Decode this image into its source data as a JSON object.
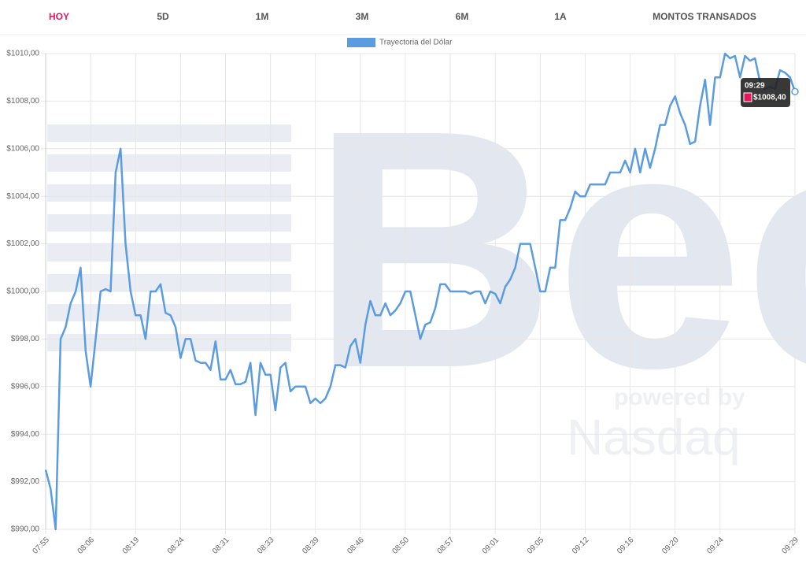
{
  "tabs": [
    "HOY",
    "5D",
    "1M",
    "3M",
    "6M",
    "1A",
    "MONTOS TRANSADOS"
  ],
  "active_tab": 0,
  "watermark": {
    "logo": "Bec",
    "tagline": "powered by",
    "brand": "Nasdaq"
  },
  "chart_data": {
    "type": "line",
    "categories": [
      "07:55",
      null,
      null,
      null,
      null,
      null,
      null,
      null,
      null,
      "08:06",
      null,
      null,
      null,
      null,
      null,
      null,
      null,
      null,
      "08:19",
      null,
      null,
      null,
      null,
      null,
      null,
      null,
      null,
      "08:24",
      null,
      null,
      null,
      null,
      null,
      null,
      null,
      null,
      "08:31",
      null,
      null,
      null,
      null,
      null,
      null,
      null,
      null,
      "08:33",
      null,
      null,
      null,
      null,
      null,
      null,
      null,
      null,
      "08:39",
      null,
      null,
      null,
      null,
      null,
      null,
      null,
      null,
      "08:46",
      null,
      null,
      null,
      null,
      null,
      null,
      null,
      null,
      "08:50",
      null,
      null,
      null,
      null,
      null,
      null,
      null,
      null,
      "08:57",
      null,
      null,
      null,
      null,
      null,
      null,
      null,
      null,
      "09:01",
      null,
      null,
      null,
      null,
      null,
      null,
      null,
      null,
      "09:05",
      null,
      null,
      null,
      null,
      null,
      null,
      null,
      null,
      "09:12",
      null,
      null,
      null,
      null,
      null,
      null,
      null,
      null,
      "09:16",
      null,
      null,
      null,
      null,
      null,
      null,
      null,
      null,
      "09:20",
      null,
      null,
      null,
      null,
      null,
      null,
      null,
      null,
      "09:24",
      null,
      null,
      null,
      null,
      null,
      null,
      null,
      null,
      null,
      null,
      null,
      null,
      null,
      null,
      "09:29"
    ],
    "series": [
      {
        "name": "Trayectoria del Dólar",
        "color": "#5b9be0",
        "values": [
          992.5,
          991.7,
          990,
          998,
          998.5,
          999.5,
          1000,
          1001,
          997.5,
          996,
          998,
          1000,
          1000.1,
          1000,
          1005,
          1006,
          1002,
          1000,
          999,
          999,
          998,
          1000,
          1000,
          1000.3,
          999.1,
          999,
          998.5,
          997.2,
          998,
          998,
          997.1,
          997,
          997,
          996.7,
          997.9,
          996.3,
          996.3,
          996.7,
          996.1,
          996.1,
          996.2,
          997,
          994.8,
          997,
          996.5,
          996.5,
          995,
          996.8,
          997,
          995.8,
          996,
          996,
          996,
          995.3,
          995.5,
          995.3,
          995.5,
          996,
          996.9,
          996.9,
          996.8,
          997.7,
          998,
          997,
          998.6,
          999.6,
          999,
          999,
          999.5,
          999,
          999.2,
          999.5,
          1000,
          1000,
          999,
          998,
          998.6,
          998.7,
          999.3,
          1000.3,
          1000.3,
          1000,
          1000,
          1000,
          1000,
          999.9,
          1000,
          1000,
          999.5,
          1000,
          999.9,
          999.5,
          1000.2,
          1000.5,
          1001,
          1002,
          1002,
          1002,
          1001,
          1000,
          1000,
          1001,
          1001,
          1003,
          1003,
          1003.5,
          1004.2,
          1004,
          1004,
          1004.5,
          1004.5,
          1004.5,
          1004.5,
          1005,
          1005,
          1005,
          1005.5,
          1005,
          1006,
          1005,
          1006,
          1005.2,
          1006,
          1007,
          1007,
          1007.8,
          1008.2,
          1007.5,
          1007,
          1006.2,
          1006.3,
          1007.8,
          1008.9,
          1007,
          1009,
          1009,
          1010,
          1009.8,
          1009.9,
          1009,
          1009.9,
          1009.7,
          1009.8,
          1008.8,
          1008.5,
          1008.6,
          1008.5,
          1009.3,
          1009.2,
          1009,
          1008.4
        ]
      }
    ],
    "ylim": [
      990,
      1010
    ],
    "yticks": [
      {
        "value": 990,
        "label": "$990,00"
      },
      {
        "value": 992,
        "label": "$992,00"
      },
      {
        "value": 994,
        "label": "$994,00"
      },
      {
        "value": 996,
        "label": "$996,00"
      },
      {
        "value": 998,
        "label": "$998,00"
      },
      {
        "value": 1000,
        "label": "$1000,00"
      },
      {
        "value": 1002,
        "label": "$1002,00"
      },
      {
        "value": 1004,
        "label": "$1004,00"
      },
      {
        "value": 1006,
        "label": "$1006,00"
      },
      {
        "value": 1008,
        "label": "$1008,00"
      },
      {
        "value": 1010,
        "label": "$1010,00"
      }
    ],
    "grid": true,
    "tooltip": {
      "label": "$1008,40",
      "color": "#e8175d"
    }
  }
}
